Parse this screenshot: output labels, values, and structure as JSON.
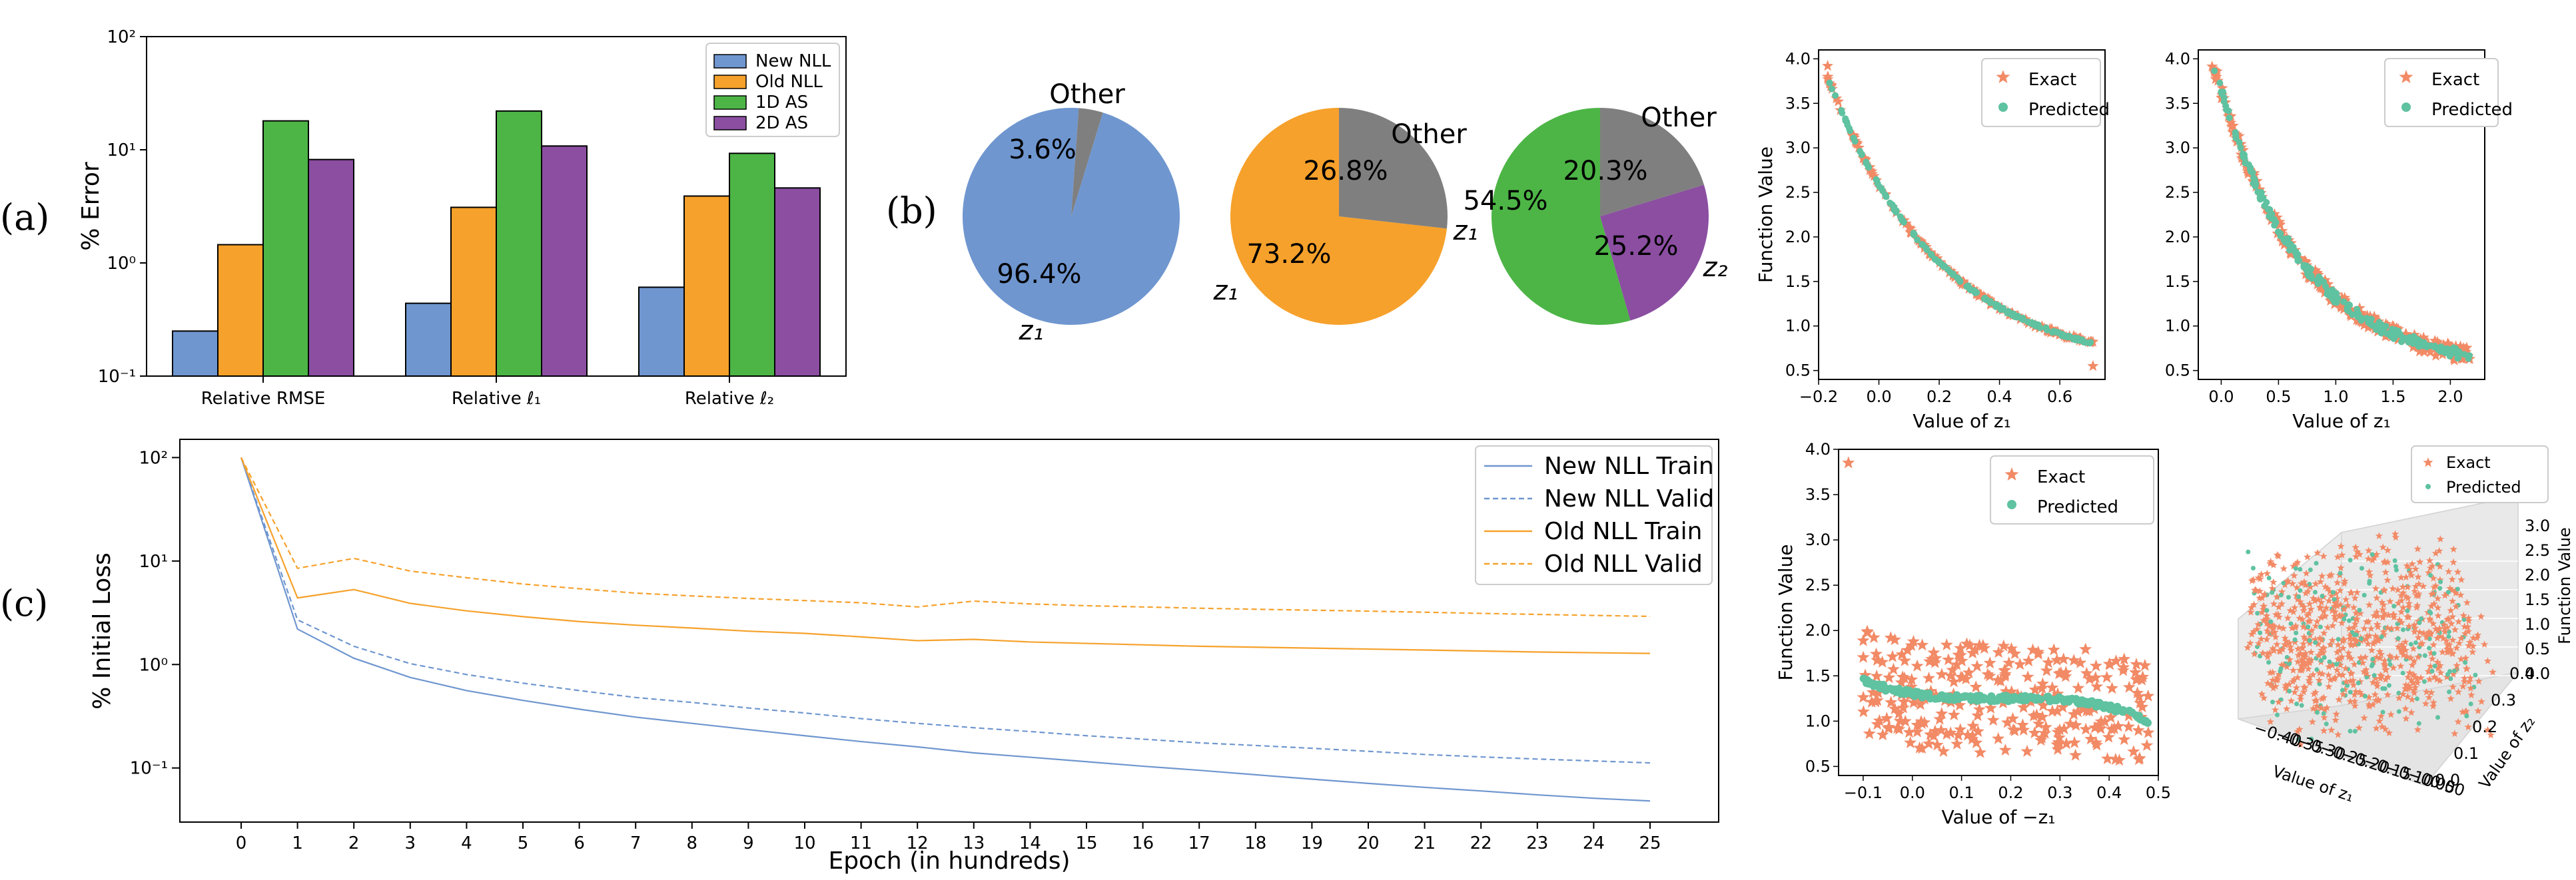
{
  "panel_labels": {
    "a": "(a)",
    "b": "(b)",
    "c": "(c)"
  },
  "colors": {
    "new_nll": "#6f96cf",
    "old_nll": "#f6a12b",
    "as1d": "#4db546",
    "as2d": "#8b4ea1",
    "other": "#7f7f7f",
    "exact": "#f28a66",
    "predicted": "#5fc2a1"
  },
  "chart_data": [
    {
      "id": "bar",
      "type": "bar",
      "scale": "log",
      "ylim": [
        0.1,
        100
      ],
      "ylabel": "% Error",
      "yticks": [
        "10⁻¹",
        "10⁰",
        "10¹",
        "10²"
      ],
      "categories": [
        "Relative RMSE",
        "Relative ℓ₁",
        "Relative ℓ₂"
      ],
      "series": [
        {
          "name": "New NLL",
          "color": "#6f96cf",
          "values": [
            0.25,
            0.44,
            0.61
          ]
        },
        {
          "name": "Old NLL",
          "color": "#f6a12b",
          "values": [
            1.45,
            3.1,
            3.9
          ]
        },
        {
          "name": "1D AS",
          "color": "#4db546",
          "values": [
            18,
            22,
            9.3
          ]
        },
        {
          "name": "2D AS",
          "color": "#8b4ea1",
          "values": [
            8.2,
            10.8,
            4.6
          ]
        }
      ],
      "legend": "top-right"
    },
    {
      "id": "pie1",
      "type": "pie",
      "slices": [
        {
          "label": "z₁",
          "pct_text": "96.4%",
          "value": 96.4,
          "color": "#6f96cf"
        },
        {
          "label": "Other",
          "pct_text": "3.6%",
          "value": 3.6,
          "color": "#7f7f7f"
        }
      ]
    },
    {
      "id": "pie2",
      "type": "pie",
      "slices": [
        {
          "label": "z₁",
          "pct_text": "73.2%",
          "value": 73.2,
          "color": "#f6a12b"
        },
        {
          "label": "Other",
          "pct_text": "26.8%",
          "value": 26.8,
          "color": "#7f7f7f"
        }
      ]
    },
    {
      "id": "pie3",
      "type": "pie",
      "slices": [
        {
          "label": "z₁",
          "pct_text": "54.5%",
          "value": 54.5,
          "color": "#4db546"
        },
        {
          "label": "z₂",
          "pct_text": "25.2%",
          "value": 25.2,
          "color": "#8b4ea1"
        },
        {
          "label": "Other",
          "pct_text": "20.3%",
          "value": 20.3,
          "color": "#7f7f7f"
        }
      ]
    },
    {
      "id": "loss",
      "type": "line",
      "scale": "log",
      "ylim": [
        0.03,
        150
      ],
      "xlabel": "Epoch (in hundreds)",
      "ylabel": "% Initial Loss",
      "yticks": [
        "10⁻¹",
        "10⁰",
        "10¹",
        "10²"
      ],
      "x": [
        0,
        1,
        2,
        3,
        4,
        5,
        6,
        7,
        8,
        9,
        10,
        11,
        12,
        13,
        14,
        15,
        16,
        17,
        18,
        19,
        20,
        21,
        22,
        23,
        24,
        25
      ],
      "series": [
        {
          "name": "New NLL Train",
          "color": "#6f96cf",
          "dash": false,
          "values": [
            100,
            2.2,
            1.15,
            0.75,
            0.56,
            0.45,
            0.37,
            0.31,
            0.27,
            0.235,
            0.205,
            0.18,
            0.16,
            0.14,
            0.127,
            0.115,
            0.104,
            0.095,
            0.086,
            0.078,
            0.071,
            0.065,
            0.06,
            0.055,
            0.051,
            0.048
          ]
        },
        {
          "name": "New NLL Valid",
          "color": "#6f96cf",
          "dash": true,
          "values": [
            100,
            2.7,
            1.5,
            1.02,
            0.8,
            0.66,
            0.56,
            0.48,
            0.43,
            0.38,
            0.34,
            0.3,
            0.27,
            0.245,
            0.225,
            0.205,
            0.19,
            0.175,
            0.165,
            0.155,
            0.145,
            0.135,
            0.128,
            0.122,
            0.117,
            0.112
          ]
        },
        {
          "name": "Old NLL Train",
          "color": "#f6a12b",
          "dash": false,
          "values": [
            100,
            4.4,
            5.3,
            3.9,
            3.3,
            2.9,
            2.6,
            2.4,
            2.25,
            2.1,
            2.0,
            1.85,
            1.7,
            1.75,
            1.65,
            1.6,
            1.55,
            1.5,
            1.47,
            1.44,
            1.41,
            1.38,
            1.35,
            1.32,
            1.3,
            1.28
          ]
        },
        {
          "name": "Old NLL Valid",
          "color": "#f6a12b",
          "dash": true,
          "values": [
            100,
            8.5,
            10.6,
            8.0,
            6.9,
            6.0,
            5.4,
            4.9,
            4.6,
            4.35,
            4.15,
            3.95,
            3.6,
            4.1,
            3.85,
            3.7,
            3.6,
            3.5,
            3.42,
            3.35,
            3.28,
            3.2,
            3.12,
            3.05,
            2.98,
            2.92
          ]
        }
      ],
      "legend": "top-right"
    },
    {
      "id": "sc1",
      "type": "scatter",
      "xlabel": "Value of z₁",
      "ylabel": "Function Value",
      "xlim": [
        -0.2,
        0.75
      ],
      "ylim": [
        0.4,
        4.1
      ],
      "xticks": [
        "−0.2",
        "0.0",
        "0.2",
        "0.4",
        "0.6"
      ],
      "yticks": [
        "0.5",
        "1.0",
        "1.5",
        "2.0",
        "2.5",
        "3.0",
        "3.5",
        "4.0"
      ],
      "legend": [
        "Exact",
        "Predicted"
      ]
    },
    {
      "id": "sc2",
      "type": "scatter",
      "xlabel": "Value of z₁",
      "ylabel": "",
      "xlim": [
        -0.2,
        2.3
      ],
      "ylim": [
        0.4,
        4.1
      ],
      "xticks": [
        "0.0",
        "0.5",
        "1.0",
        "1.5",
        "2.0"
      ],
      "yticks": [
        "0.5",
        "1.0",
        "1.5",
        "2.0",
        "2.5",
        "3.0",
        "3.5",
        "4.0"
      ],
      "legend": [
        "Exact",
        "Predicted"
      ]
    },
    {
      "id": "sc3",
      "type": "scatter",
      "xlabel": "Value of −z₁",
      "ylabel": "Function Value",
      "xlim": [
        -0.15,
        0.5
      ],
      "ylim": [
        0.4,
        4.0
      ],
      "xticks": [
        "−0.1",
        "0.0",
        "0.1",
        "0.2",
        "0.3",
        "0.4",
        "0.5"
      ],
      "yticks": [
        "0.5",
        "1.0",
        "1.5",
        "2.0",
        "2.5",
        "3.0",
        "3.5",
        "4.0"
      ],
      "legend": [
        "Exact",
        "Predicted"
      ]
    },
    {
      "id": "sc3d",
      "type": "scatter",
      "xlabel": "Value of z₁",
      "ylabel": "Value of z₂",
      "zlabel": "Function Value",
      "xticks": [
        "−0.40",
        "−0.35",
        "−0.30",
        "−0.25",
        "−0.20",
        "−0.15",
        "−0.10",
        "−0.05",
        "0.00"
      ],
      "yticks": [
        "0.0",
        "0.1",
        "0.2",
        "0.3",
        "0.4"
      ],
      "zticks": [
        "0.0",
        "0.5",
        "1.0",
        "1.5",
        "2.0",
        "2.5",
        "3.0"
      ],
      "legend": [
        "Exact",
        "Predicted"
      ]
    }
  ]
}
